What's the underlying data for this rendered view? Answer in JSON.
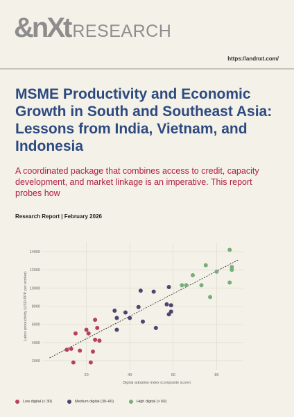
{
  "header": {
    "logo_mark": "&nXt",
    "logo_word": "RESEARCH",
    "url": "https://andnxt.com/"
  },
  "report": {
    "title_bold": "MSME Productivity and Economic Growth in South and Southeast Asia:",
    "title_rest": " Lessons from India, Vietnam, and Indonesia",
    "subtitle": "A coordinated package that combines access to credit,  capacity development, and market linkage is an imperative. This report probes how",
    "meta": "Research Report | February 2026"
  },
  "colors": {
    "title": "#2d4a80",
    "subtitle": "#b11e3f",
    "low": "#b8405e",
    "medium": "#4a4670",
    "high": "#78ae78"
  },
  "chart_data": {
    "type": "scatter",
    "xlabel": "Digital adoption index (composite score)",
    "ylabel": "Labor productivity (USD PPP per worker)",
    "xlim": [
      0,
      92
    ],
    "ylim": [
      1000,
      15000
    ],
    "xticks": [
      20,
      40,
      60,
      80
    ],
    "yticks": [
      2000,
      4000,
      6000,
      8000,
      10000,
      12000,
      14000
    ],
    "grid": true,
    "trendline": {
      "x": [
        3,
        90
      ],
      "y": [
        2300,
        13100
      ]
    },
    "series": [
      {
        "name": "Low digital (< 30)",
        "color": "#b8405e",
        "points": [
          [
            11,
            3200
          ],
          [
            13,
            3300
          ],
          [
            14,
            1800
          ],
          [
            15,
            5000
          ],
          [
            17,
            3100
          ],
          [
            20,
            5400
          ],
          [
            21,
            5000
          ],
          [
            22,
            1800
          ],
          [
            23,
            3000
          ],
          [
            24,
            4300
          ],
          [
            24,
            6500
          ],
          [
            25,
            5600
          ],
          [
            26,
            4200
          ]
        ]
      },
      {
        "name": "Medium digital (30–60)",
        "color": "#4a4670",
        "points": [
          [
            33,
            7500
          ],
          [
            34,
            6700
          ],
          [
            34,
            5400
          ],
          [
            38,
            7300
          ],
          [
            40,
            6700
          ],
          [
            44,
            7900
          ],
          [
            45,
            9700
          ],
          [
            46,
            6300
          ],
          [
            51,
            9600
          ],
          [
            52,
            5600
          ],
          [
            57,
            8200
          ],
          [
            58,
            10100
          ],
          [
            58,
            7100
          ],
          [
            59,
            7400
          ],
          [
            59,
            8100
          ]
        ]
      },
      {
        "name": "High digital (> 60)",
        "color": "#78ae78",
        "points": [
          [
            64,
            10300
          ],
          [
            66,
            10300
          ],
          [
            69,
            11400
          ],
          [
            73,
            10300
          ],
          [
            75,
            12500
          ],
          [
            77,
            9000
          ],
          [
            80,
            11800
          ],
          [
            86,
            14200
          ],
          [
            86,
            10600
          ],
          [
            87,
            12300
          ],
          [
            87,
            12000
          ]
        ]
      }
    ]
  }
}
